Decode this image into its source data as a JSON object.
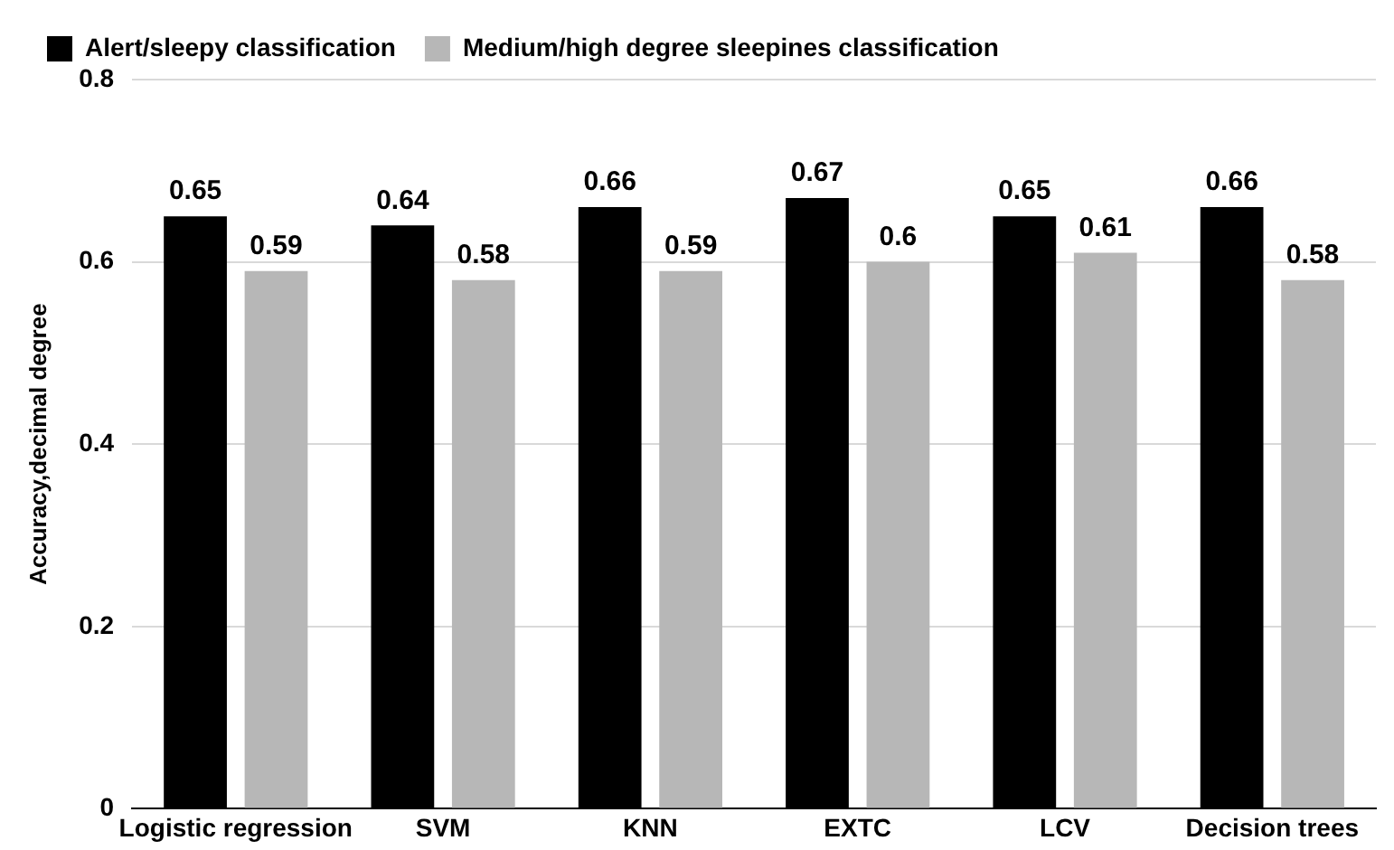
{
  "chart_data": {
    "type": "bar",
    "ylabel": "Accuracy,decimal degree",
    "categories": [
      "Logistic regression",
      "SVM",
      "KNN",
      "EXTC",
      "LCV",
      "Decision trees"
    ],
    "series": [
      {
        "name": "Alert/sleepy classification",
        "color": "#000000",
        "values": [
          0.65,
          0.64,
          0.66,
          0.67,
          0.65,
          0.66
        ]
      },
      {
        "name": "Medium/high degree sleepines classification",
        "color": "#b7b7b7",
        "values": [
          0.59,
          0.58,
          0.59,
          0.6,
          0.61,
          0.58
        ]
      }
    ],
    "ylim": [
      0,
      0.8
    ],
    "yticks": [
      0,
      0.2,
      0.4,
      0.6,
      0.8
    ],
    "grid": "y",
    "legend": "top left",
    "data_labels": true
  }
}
